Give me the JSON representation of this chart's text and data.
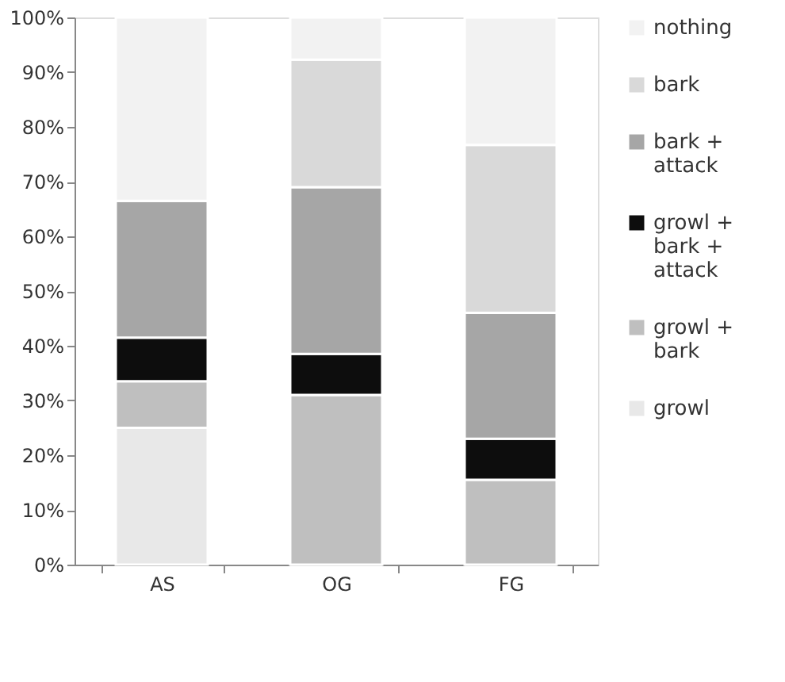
{
  "chart_data": {
    "type": "bar",
    "stacked": true,
    "categories": [
      "AS",
      "OG",
      "FG"
    ],
    "series": [
      {
        "name": "growl",
        "color": "#e8e8e8",
        "values": [
          25,
          0,
          0
        ]
      },
      {
        "name": "growl + bark",
        "color": "#bfbfbf",
        "values": [
          8.5,
          31,
          15.5
        ]
      },
      {
        "name": "growl + bark + attack",
        "color": "#0d0d0d",
        "values": [
          8,
          7.5,
          7.5
        ]
      },
      {
        "name": "bark + attack",
        "color": "#a6a6a6",
        "values": [
          25,
          30.5,
          23
        ]
      },
      {
        "name": "bark",
        "color": "#d9d9d9",
        "values": [
          0,
          23.3,
          30.7
        ]
      },
      {
        "name": "nothing",
        "color": "#f2f2f2",
        "values": [
          33.5,
          7.7,
          23.3
        ]
      }
    ],
    "ylim": [
      0,
      100
    ],
    "yticks": [
      {
        "value": 0,
        "label": "0%"
      },
      {
        "value": 10,
        "label": "10%"
      },
      {
        "value": 20,
        "label": "20%"
      },
      {
        "value": 30,
        "label": "30%"
      },
      {
        "value": 40,
        "label": "40%"
      },
      {
        "value": 50,
        "label": "50%"
      },
      {
        "value": 60,
        "label": "60%"
      },
      {
        "value": 70,
        "label": "70%"
      },
      {
        "value": 80,
        "label": "80%"
      },
      {
        "value": 90,
        "label": "90%"
      },
      {
        "value": 100,
        "label": "100%"
      }
    ],
    "grid": false,
    "legend": "right"
  }
}
